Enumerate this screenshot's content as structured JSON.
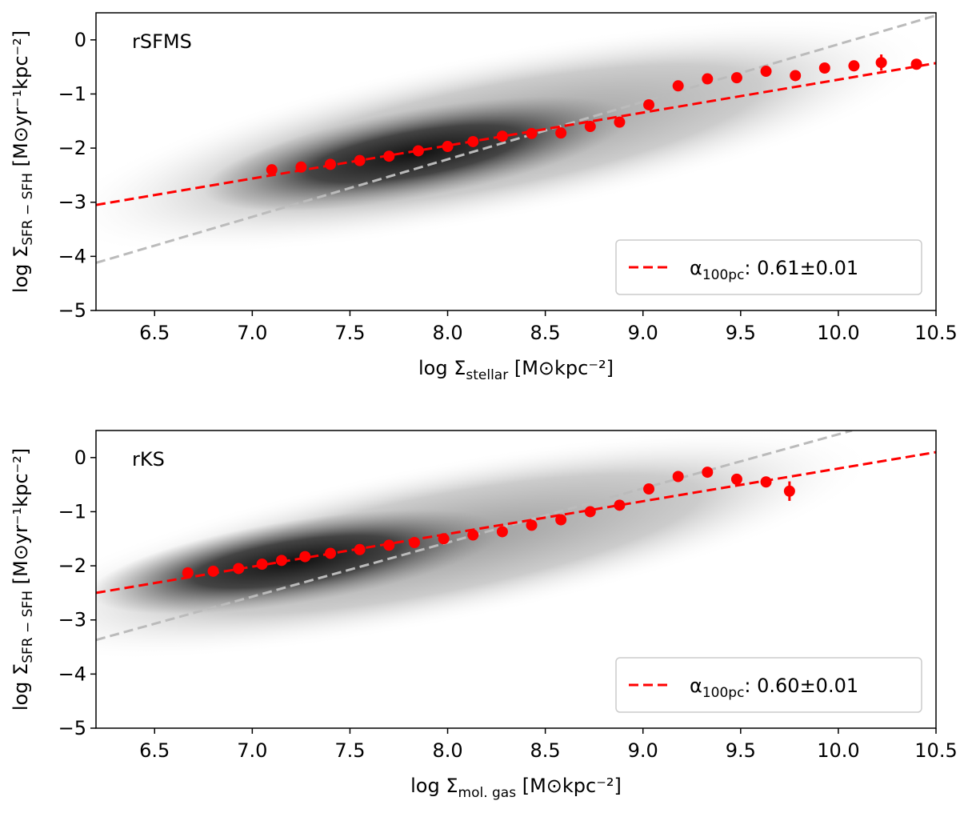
{
  "chart_data": [
    {
      "type": "scatter",
      "annotation": "rSFMS",
      "xlabel": {
        "main": "log Σ",
        "sub": "stellar",
        "unit": " [M⊙kpc⁻²]"
      },
      "ylabel": {
        "main": "log Σ",
        "sub": "SFR − SFH",
        "unit": " [M⊙yr⁻¹kpc⁻²]"
      },
      "xlim": [
        6.2,
        10.5
      ],
      "ylim": [
        -5,
        0.5
      ],
      "xticks": [
        6.5,
        {
          "value": 7,
          "label": "7.0"
        },
        7.5,
        {
          "value": 8,
          "label": "8.0"
        },
        8.5,
        {
          "value": 9,
          "label": "9.0"
        },
        9.5,
        {
          "value": 10,
          "label": "10.0"
        },
        10.5
      ],
      "yticks": [
        {
          "value": -5,
          "label": "−5"
        },
        {
          "value": -4,
          "label": "−4"
        },
        {
          "value": -3,
          "label": "−3"
        },
        {
          "value": -2,
          "label": "−2"
        },
        {
          "value": -1,
          "label": "−1"
        },
        0
      ],
      "legend": "lower right",
      "series": [
        {
          "color": "#ff0000",
          "x": [
            7.1,
            7.25,
            7.4,
            7.55,
            7.7,
            7.85,
            8.0,
            8.13,
            8.28,
            8.43,
            8.58,
            8.73,
            8.88,
            9.03,
            9.18,
            9.33,
            9.48,
            9.63,
            9.78,
            9.93,
            10.08,
            10.22,
            10.4
          ],
          "values": [
            -2.4,
            -2.35,
            -2.3,
            -2.23,
            -2.15,
            -2.05,
            -1.97,
            -1.88,
            -1.78,
            -1.73,
            -1.72,
            -1.6,
            -1.52,
            -1.2,
            -0.85,
            -0.72,
            -0.7,
            -0.58,
            -0.66,
            -0.52,
            -0.48,
            -0.42,
            -0.45
          ],
          "errors": [
            null,
            null,
            null,
            null,
            null,
            null,
            null,
            null,
            null,
            null,
            null,
            null,
            null,
            null,
            null,
            null,
            null,
            null,
            null,
            null,
            0.1,
            0.15,
            0.05
          ]
        }
      ],
      "lines": [
        {
          "color": "#bbbbbb",
          "x": [
            6.2,
            10.5
          ],
          "values": [
            -4.12,
            0.45
          ]
        },
        {
          "color": "#ff0000",
          "name": {
            "main": "α",
            "sub": "100pc",
            "unit": ":  0.61±0.01"
          },
          "x": [
            6.2,
            10.5
          ],
          "values": [
            -3.05,
            -0.43
          ]
        }
      ]
    },
    {
      "type": "scatter",
      "annotation": "rKS",
      "xlabel": {
        "main": "log Σ",
        "sub": "mol. gas",
        "unit": " [M⊙kpc⁻²]"
      },
      "ylabel": {
        "main": "log Σ",
        "sub": "SFR − SFH",
        "unit": " [M⊙yr⁻¹kpc⁻²]"
      },
      "xlim": [
        6.2,
        10.5
      ],
      "ylim": [
        -5,
        0.5
      ],
      "xticks": [
        6.5,
        {
          "value": 7,
          "label": "7.0"
        },
        7.5,
        {
          "value": 8,
          "label": "8.0"
        },
        8.5,
        {
          "value": 9,
          "label": "9.0"
        },
        9.5,
        {
          "value": 10,
          "label": "10.0"
        },
        10.5
      ],
      "yticks": [
        {
          "value": -5,
          "label": "−5"
        },
        {
          "value": -4,
          "label": "−4"
        },
        {
          "value": -3,
          "label": "−3"
        },
        {
          "value": -2,
          "label": "−2"
        },
        {
          "value": -1,
          "label": "−1"
        },
        0
      ],
      "legend": "lower right",
      "series": [
        {
          "color": "#ff0000",
          "x": [
            6.67,
            6.8,
            6.93,
            7.05,
            7.15,
            7.27,
            7.4,
            7.55,
            7.7,
            7.83,
            7.98,
            8.13,
            8.28,
            8.43,
            8.58,
            8.73,
            8.88,
            9.03,
            9.18,
            9.33,
            9.48,
            9.63,
            9.75
          ],
          "values": [
            -2.13,
            -2.1,
            -2.05,
            -1.97,
            -1.9,
            -1.83,
            -1.77,
            -1.7,
            -1.62,
            -1.57,
            -1.5,
            -1.43,
            -1.37,
            -1.25,
            -1.15,
            -1.0,
            -0.88,
            -0.58,
            -0.35,
            -0.27,
            -0.4,
            -0.45,
            -0.62
          ],
          "errors": [
            null,
            null,
            null,
            null,
            null,
            null,
            null,
            null,
            null,
            null,
            null,
            null,
            null,
            null,
            null,
            null,
            null,
            null,
            null,
            null,
            null,
            0.1,
            0.18
          ]
        }
      ],
      "lines": [
        {
          "color": "#bbbbbb",
          "x": [
            6.2,
            10.07
          ],
          "values": [
            -3.37,
            0.5
          ]
        },
        {
          "color": "#ff0000",
          "name": {
            "main": "α",
            "sub": "100pc",
            "unit": ":  0.60±0.01"
          },
          "x": [
            6.2,
            10.5
          ],
          "values": [
            -2.5,
            0.1
          ]
        }
      ]
    }
  ]
}
